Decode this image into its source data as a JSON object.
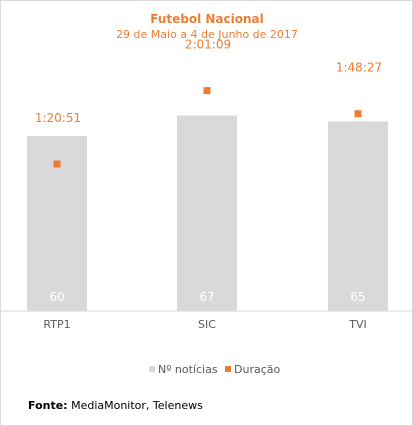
{
  "colors": {
    "bar": "#d9d9d9",
    "marker": "#ed7d31",
    "title": "#ed7d31",
    "axis_text": "#595959",
    "bar_label": "#ffffff"
  },
  "source": {
    "label": "Fonte:",
    "text": "MediaMonitor, Telenews"
  },
  "chart_data": {
    "type": "bar",
    "title": "Futebol Nacional",
    "subtitle": "29 de Maio a 4 de Junho de 2017",
    "categories": [
      "RTP1",
      "SIC",
      "TVI"
    ],
    "series": [
      {
        "name": "Nº notícias",
        "type": "bar",
        "values": [
          60,
          67,
          65
        ],
        "labels": [
          "60",
          "67",
          "65"
        ]
      },
      {
        "name": "Duração",
        "type": "scatter",
        "values_seconds": [
          4851,
          7269,
          6507
        ],
        "labels": [
          "1:20:51",
          "2:01:09",
          "1:48:27"
        ]
      }
    ],
    "legend_position": "bottom",
    "grid": false
  }
}
